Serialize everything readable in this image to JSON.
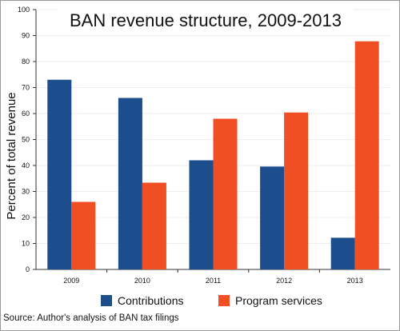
{
  "chart_data": {
    "type": "bar",
    "title": "BAN revenue structure, 2009-2013",
    "xlabel": "",
    "ylabel": "Percent of total revenue",
    "categories": [
      "2009",
      "2010",
      "2011",
      "2012",
      "2013"
    ],
    "series": [
      {
        "name": "Contributions",
        "values": [
          73,
          66,
          42,
          39.6,
          12.2
        ],
        "color": "#1c4d8c"
      },
      {
        "name": "Program services",
        "values": [
          26,
          33.4,
          58,
          60.4,
          87.8
        ],
        "color": "#f04e23"
      }
    ],
    "ylim": [
      0,
      100
    ],
    "yticks": [
      "0",
      "10",
      "20",
      "30",
      "40",
      "50",
      "60",
      "70",
      "80",
      "90",
      "100"
    ],
    "grid": true,
    "legend": "bottom",
    "gridline_color": "#eeeeee"
  },
  "source": {
    "label": "Source:",
    "text": "Author's analysis of BAN tax filings"
  }
}
